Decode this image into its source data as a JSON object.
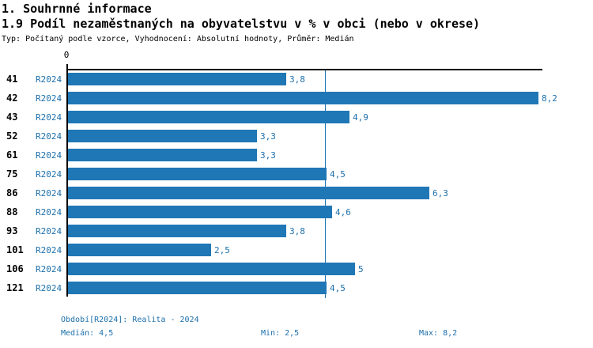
{
  "header": {
    "title": "1. Souhrnné informace",
    "subtitle": "1.9 Podíl nezaměstnaných na obyvatelstvu v % v obci (nebo v okrese)",
    "meta": "Typ: Počítaný podle vzorce, Vyhodnocení: Absolutní hodnoty, Průměr: Medián"
  },
  "chart_data": {
    "type": "bar",
    "orientation": "horizontal",
    "title": "1.9 Podíl nezaměstnaných na obyvatelstvu v % v obci (nebo v okrese)",
    "categories": [
      "41",
      "42",
      "43",
      "52",
      "61",
      "75",
      "86",
      "88",
      "93",
      "101",
      "106",
      "121"
    ],
    "series": [
      {
        "name": "R2024",
        "values": [
          3.8,
          8.2,
          4.9,
          3.3,
          3.3,
          4.5,
          6.3,
          4.6,
          3.8,
          2.5,
          5,
          4.5
        ],
        "value_labels": [
          "3,8",
          "8,2",
          "4,9",
          "3,3",
          "3,3",
          "4,5",
          "6,3",
          "4,6",
          "3,8",
          "2,5",
          "5",
          "4,5"
        ]
      }
    ],
    "xlim": [
      0,
      8.2
    ],
    "x_tick_labels": [
      "0"
    ],
    "median_reference_line": 4.5,
    "grid": false,
    "legend": false,
    "bar_color": "#2077b5",
    "label_color": "#1c6fab",
    "axis_color": "#000000"
  },
  "footer": {
    "period": "Období[R2024]: Realita - 2024",
    "median": "Medián: 4,5",
    "min": "Min: 2,5",
    "max": "Max: 8,2"
  }
}
